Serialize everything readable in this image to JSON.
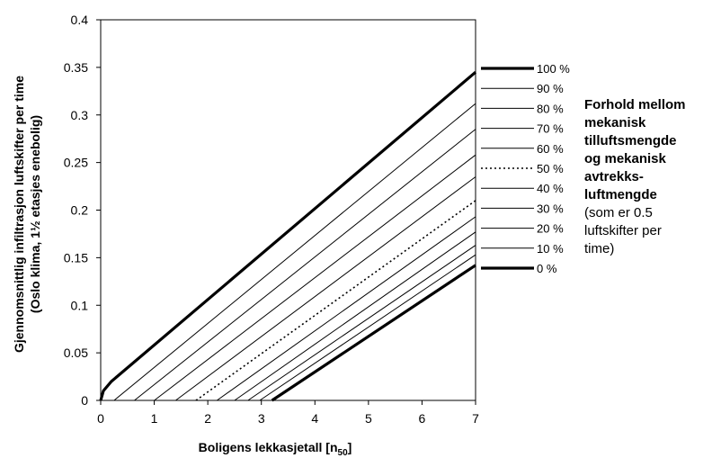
{
  "chart_data": {
    "type": "line",
    "xlabel": "Boligens lekkasjetall  [n",
    "xlabel_sub": "50",
    "xlabel_end": "]",
    "ylabel_line1": "Gjennomsnittlig infiltrasjon luftskifter per time",
    "ylabel_line2": "(Oslo klima, 1½ etasjes enebolig)",
    "xlim": [
      0,
      7
    ],
    "ylim": [
      0,
      0.4
    ],
    "x_ticks": [
      "0",
      "1",
      "2",
      "3",
      "4",
      "5",
      "6",
      "7"
    ],
    "y_ticks": [
      "0",
      "0.05",
      "0.1",
      "0.15",
      "0.2",
      "0.25",
      "0.3",
      "0.35",
      "0.4"
    ],
    "grid": false,
    "legend_position": "right",
    "series": [
      {
        "name": "100 %",
        "style": "thick",
        "points": [
          [
            0,
            0
          ],
          [
            0.05,
            0.01
          ],
          [
            0.2,
            0.02
          ],
          [
            7,
            0.345
          ]
        ]
      },
      {
        "name": "90 %",
        "style": "thin",
        "points": [
          [
            0.25,
            0
          ],
          [
            7,
            0.312
          ]
        ]
      },
      {
        "name": "80 %",
        "style": "thin",
        "points": [
          [
            0.63,
            0
          ],
          [
            7,
            0.285
          ]
        ]
      },
      {
        "name": "70 %",
        "style": "thin",
        "points": [
          [
            1.0,
            0
          ],
          [
            7,
            0.258
          ]
        ]
      },
      {
        "name": "60 %",
        "style": "thin",
        "points": [
          [
            1.4,
            0
          ],
          [
            7,
            0.235
          ]
        ]
      },
      {
        "name": "50 %",
        "style": "dotted",
        "points": [
          [
            1.78,
            0
          ],
          [
            7,
            0.21
          ]
        ]
      },
      {
        "name": "40 %",
        "style": "thin",
        "points": [
          [
            2.17,
            0
          ],
          [
            7,
            0.193
          ]
        ]
      },
      {
        "name": "30 %",
        "style": "thin",
        "points": [
          [
            2.5,
            0
          ],
          [
            7,
            0.177
          ]
        ]
      },
      {
        "name": "20 %",
        "style": "thin",
        "points": [
          [
            2.75,
            0
          ],
          [
            7,
            0.163
          ]
        ]
      },
      {
        "name": "10 %",
        "style": "thin",
        "points": [
          [
            2.97,
            0
          ],
          [
            7,
            0.153
          ]
        ]
      },
      {
        "name": "0 %",
        "style": "thick",
        "points": [
          [
            3.2,
            0
          ],
          [
            7,
            0.142
          ]
        ]
      }
    ]
  },
  "note": {
    "bold_lines": [
      "Forhold mellom",
      "mekanisk",
      "tilluftsmengde",
      "og mekanisk",
      "avtrekks-",
      "luftmengde"
    ],
    "normal_lines": [
      "(som er 0.5",
      "luftskifter per",
      "time)"
    ]
  }
}
